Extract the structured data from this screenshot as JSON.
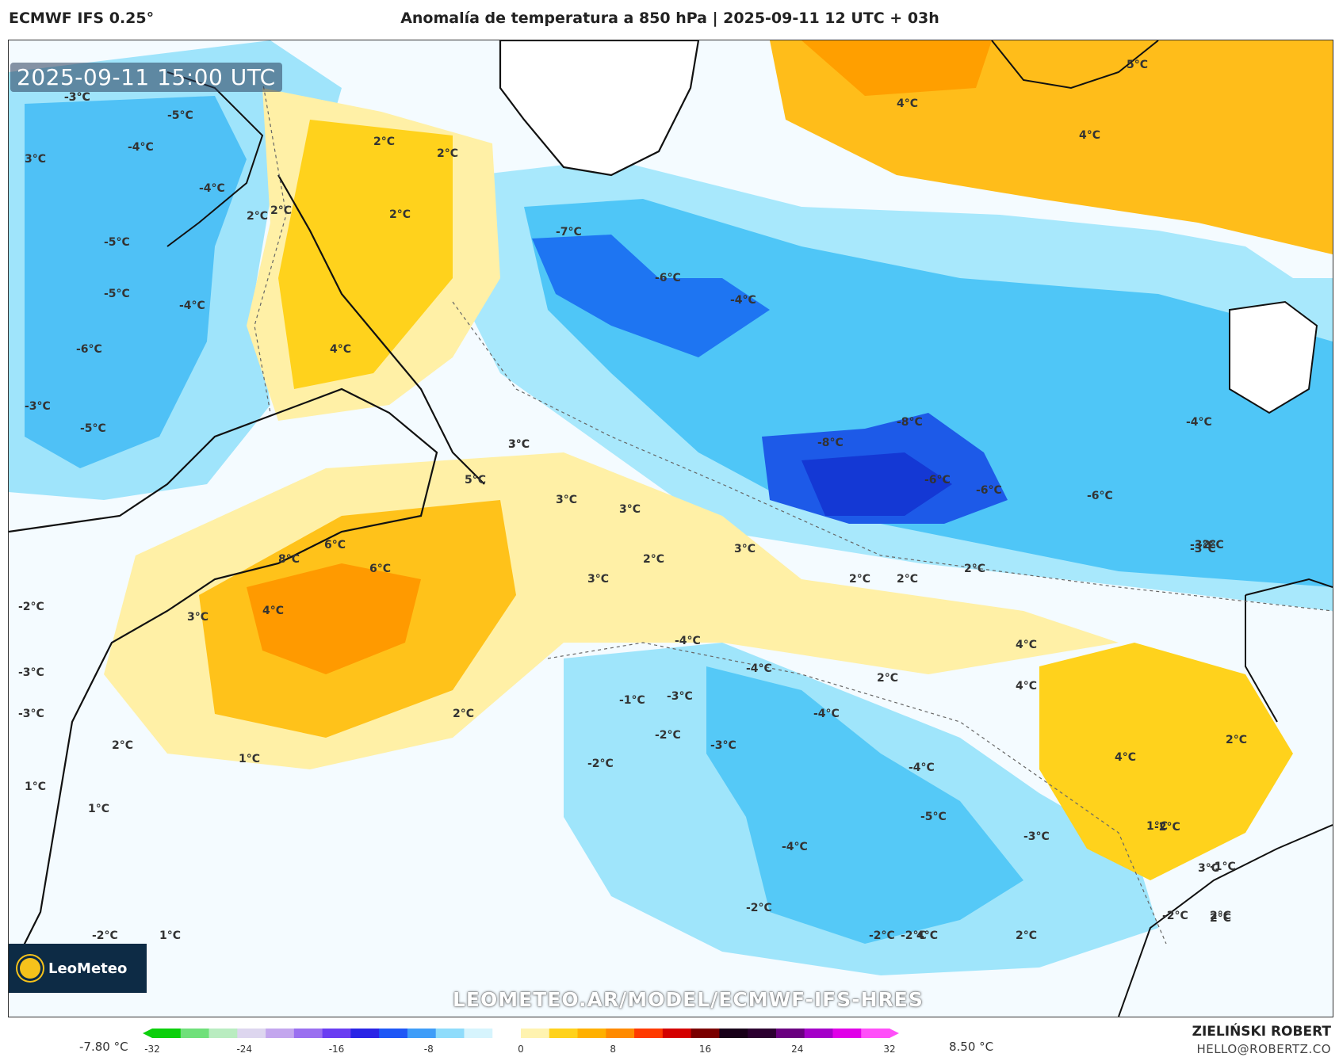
{
  "header": {
    "model": "ECMWF IFS 0.25°",
    "title": "Anomalía de temperatura a 850 hPa | 2025-09-11 12 UTC + 03h"
  },
  "map": {
    "timestamp": "2025-09-11 15:00 UTC",
    "watermark": "LEOMETEO.AR/MODEL/ECMWF-IFS-HRES",
    "logo_text": "LeoMeteo",
    "labels": [
      "-3°C",
      "-5°C",
      "-4°C",
      "-4°C",
      "3°C",
      "2°C",
      "-5°C",
      "-5°C",
      "-4°C",
      "-6°C",
      "-3°C",
      "-5°C",
      "2°C",
      "2°C",
      "4°C",
      "3°C",
      "2°C",
      "-7°C",
      "-6°C",
      "-4°C",
      "4°C",
      "4°C",
      "5°C",
      "-8°C",
      "-8°C",
      "-4°C",
      "-6°C",
      "-6°C",
      "-6°C",
      "3°C",
      "5°C",
      "3°C",
      "3°C",
      "8°C",
      "6°C",
      "6°C",
      "4°C",
      "3°C",
      "2°C",
      "2°C",
      "3°C",
      "3°C",
      "2°C",
      "2°C",
      "2°C",
      "-2°C",
      "-2°C",
      "-3°C",
      "-3°C",
      "-4°C",
      "-4°C",
      "-4°C",
      "2°C",
      "-3°C",
      "4°C",
      "4°C",
      "-2°C",
      "4°C",
      "2°C",
      "-1°C",
      "-3°C",
      "-2°C",
      "-3°C",
      "2°C",
      "2°C",
      "1°C",
      "1°C",
      "1°C",
      "-2°C",
      "-4°C",
      "-5°C",
      "-4°C",
      "-3°C",
      "-2°C",
      "4°C",
      "3°C",
      "-2°C",
      "2°C",
      "-1°C",
      "2°C",
      "-2°C",
      "-2°C",
      "1°C",
      "2°C",
      "1°C",
      "-2°C",
      "-3°C",
      "-3°C"
    ],
    "regions": [
      "cold",
      "cold",
      "cold",
      "cold",
      "warm",
      "warm",
      "warm",
      "warm",
      "warm",
      "warm",
      "neutral"
    ]
  },
  "colorbar": {
    "min_label": "-7.80 °C",
    "max_label": "8.50 °C",
    "ticks": [
      "-32",
      "-24",
      "-16",
      "-8",
      "0",
      "8",
      "16",
      "24",
      "32"
    ],
    "colors": [
      "#0ccf0c",
      "#6fe07a",
      "#b9ecc0",
      "#ddd6ef",
      "#c3a6ee",
      "#9a6ff0",
      "#6a3df2",
      "#2a24e6",
      "#1e57f6",
      "#3f9df8",
      "#8fdcfb",
      "#d6f4fd",
      "#ffffff",
      "#fff3b0",
      "#ffd21c",
      "#ffb000",
      "#ff8a00",
      "#ff3a00",
      "#d40000",
      "#7a0000",
      "#180018",
      "#2c0030",
      "#6a0080",
      "#a400c8",
      "#e000e8",
      "#ff4ff9"
    ]
  },
  "credit": {
    "name": "ZIELIŃSKI ROBERT",
    "email": "HELLO@ROBERTZ.CO"
  }
}
